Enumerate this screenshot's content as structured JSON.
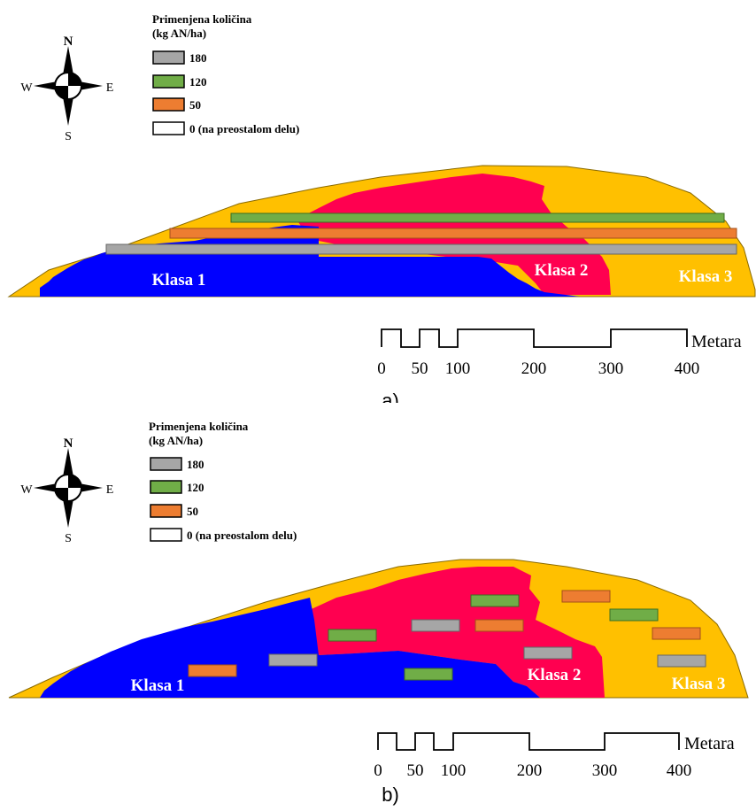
{
  "compass": {
    "n": "N",
    "s": "S",
    "e": "E",
    "w": "W"
  },
  "legend": {
    "title_line1": "Primenjena količina",
    "title_line2": "(kg AN/ha)",
    "items": [
      {
        "label": "180",
        "color": "#a6a6a6"
      },
      {
        "label": "120",
        "color": "#70ad47"
      },
      {
        "label": "50",
        "color": "#ed7d31"
      },
      {
        "label": "0 (na preostalom delu)",
        "color": "#ffffff"
      }
    ]
  },
  "zones": [
    {
      "label": "Klasa 1",
      "color": "#0000ff"
    },
    {
      "label": "Klasa 2",
      "color": "#ff0050"
    },
    {
      "label": "Klasa 3",
      "color": "#ffc000"
    }
  ],
  "scale": {
    "unit": "Metara",
    "ticks": [
      "0",
      "50",
      "100",
      "200",
      "300",
      "400"
    ]
  },
  "panels": [
    {
      "caption": "a)",
      "application": "strips"
    },
    {
      "caption": "b)",
      "application": "patches"
    }
  ]
}
